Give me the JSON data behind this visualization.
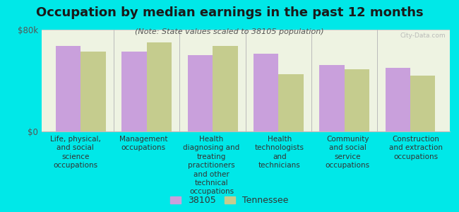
{
  "title": "Occupation by median earnings in the past 12 months",
  "subtitle": "(Note: State values scaled to 38105 population)",
  "background_color": "#00e8e8",
  "plot_bg_color": "#eef3e2",
  "categories": [
    "Life, physical,\nand social\nscience\noccupations",
    "Management\noccupations",
    "Health\ndiagnosing and\ntreating\npractitioners\nand other\ntechnical\noccupations",
    "Health\ntechnologists\nand\ntechnicians",
    "Community\nand social\nservice\noccupations",
    "Construction\nand extraction\noccupations"
  ],
  "values_38105": [
    67000,
    63000,
    60000,
    61000,
    52000,
    50000
  ],
  "values_tennessee": [
    63000,
    70000,
    67000,
    45000,
    49000,
    44000
  ],
  "color_38105": "#c9a0dc",
  "color_tennessee": "#c5cc8e",
  "ylim": [
    0,
    80000
  ],
  "ytick_labels": [
    "$0",
    "$80k"
  ],
  "legend_38105": "38105",
  "legend_tennessee": "Tennessee",
  "watermark": "City-Data.com",
  "title_fontsize": 13,
  "subtitle_fontsize": 8,
  "tick_label_fontsize": 7.5,
  "ytick_fontsize": 8.5
}
